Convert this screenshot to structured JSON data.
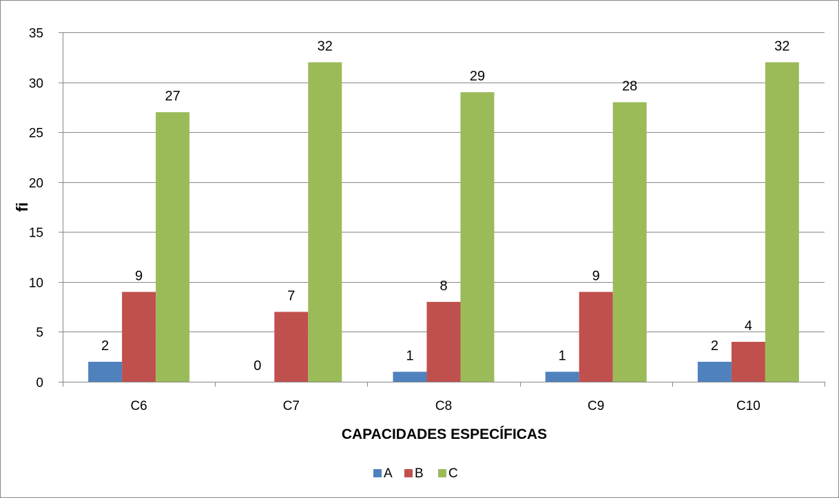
{
  "chart_data": {
    "type": "bar",
    "title": "",
    "xlabel": "CAPACIDADES  ESPECÍFICAS",
    "ylabel": "fi",
    "categories": [
      "C6",
      "C7",
      "C8",
      "C9",
      "C10"
    ],
    "series": [
      {
        "name": "A",
        "color": "#4F81BD",
        "values": [
          2,
          0,
          1,
          1,
          2
        ]
      },
      {
        "name": "B",
        "color": "#C0504D",
        "values": [
          9,
          7,
          8,
          9,
          4
        ]
      },
      {
        "name": "C",
        "color": "#9BBB59",
        "values": [
          27,
          32,
          29,
          28,
          32
        ]
      }
    ],
    "ylim": [
      0,
      35
    ],
    "yticks": [
      0,
      5,
      10,
      15,
      20,
      25,
      30,
      35
    ],
    "grid": true,
    "legend": "bottom",
    "data_labels": true
  }
}
